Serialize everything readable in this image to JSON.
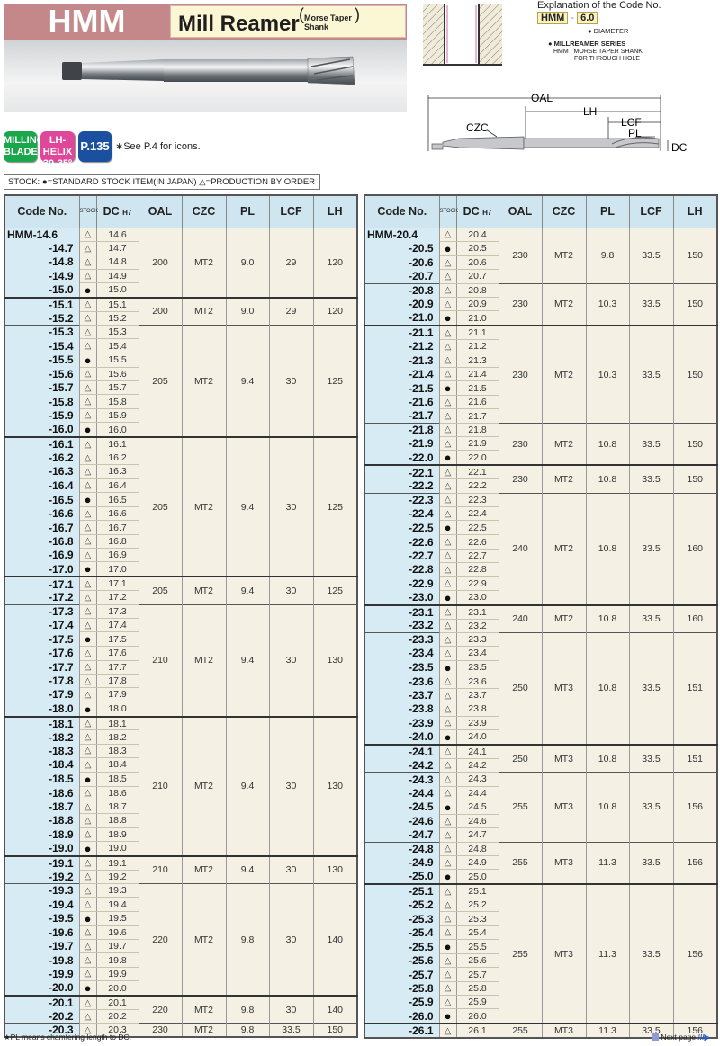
{
  "header": {
    "series_code": "HMM",
    "title": "Mill Reamer",
    "subtitle_line1": "Morse Taper",
    "subtitle_line2": "Shank"
  },
  "icons": [
    {
      "line1": "MILLING",
      "line2": "BLADE",
      "color": "#1aa64a"
    },
    {
      "line1": "LH-HELIX",
      "line2": "30-35º",
      "color": "#e0479a"
    },
    {
      "line1": "P.135",
      "line2": "",
      "color": "#1b4fa0"
    }
  ],
  "icons_note": "∗See P.4 for icons.",
  "stock_legend": "STOCK: ●=STANDARD STOCK ITEM(IN JAPAN)  △=PRODUCTION BY ORDER",
  "code_explanation": {
    "title": "Explanation of the Code No.",
    "series": "HMM",
    "sep": "-",
    "diameter": "6.0",
    "diameter_label": "DIAMETER",
    "series_label": "MILLREAMER SERIES",
    "series_desc1": "HMM : MORSE TAPER SHANK",
    "series_desc2": "FOR THROUGH HOLE"
  },
  "diagram": {
    "oal": "OAL",
    "lh": "LH",
    "lcf": "LCF",
    "pl": "PL",
    "czc": "CZC",
    "dc": "DC"
  },
  "table_headers": {
    "code": "Code No.",
    "stock": "STOCK",
    "dc": "DC",
    "dc_tol": "H7",
    "oal": "OAL",
    "czc": "CZC",
    "pl": "PL",
    "lcf": "LCF",
    "lh": "LH"
  },
  "tables": [
    [
      {
        "oal": "200",
        "czc": "MT2",
        "pl": "9.0",
        "lcf": "29",
        "lh": "120",
        "rows": [
          [
            "HMM-14.6",
            "△",
            "14.6"
          ],
          [
            "-14.7",
            "△",
            "14.7"
          ],
          [
            "-14.8",
            "△",
            "14.8"
          ],
          [
            "-14.9",
            "△",
            "14.9"
          ],
          [
            "-15.0",
            "●",
            "15.0"
          ]
        ]
      },
      {
        "oal": "200",
        "czc": "MT2",
        "pl": "9.0",
        "lcf": "29",
        "lh": "120",
        "rows": [
          [
            "-15.1",
            "△",
            "15.1"
          ],
          [
            "-15.2",
            "△",
            "15.2"
          ]
        ]
      },
      {
        "oal": "205",
        "czc": "MT2",
        "pl": "9.4",
        "lcf": "30",
        "lh": "125",
        "rows": [
          [
            "-15.3",
            "△",
            "15.3"
          ],
          [
            "-15.4",
            "△",
            "15.4"
          ],
          [
            "-15.5",
            "●",
            "15.5"
          ],
          [
            "-15.6",
            "△",
            "15.6"
          ],
          [
            "-15.7",
            "△",
            "15.7"
          ],
          [
            "-15.8",
            "△",
            "15.8"
          ],
          [
            "-15.9",
            "△",
            "15.9"
          ],
          [
            "-16.0",
            "●",
            "16.0"
          ]
        ]
      },
      {
        "oal": "205",
        "czc": "MT2",
        "pl": "9.4",
        "lcf": "30",
        "lh": "125",
        "rows": [
          [
            "-16.1",
            "△",
            "16.1"
          ],
          [
            "-16.2",
            "△",
            "16.2"
          ],
          [
            "-16.3",
            "△",
            "16.3"
          ],
          [
            "-16.4",
            "△",
            "16.4"
          ],
          [
            "-16.5",
            "●",
            "16.5"
          ],
          [
            "-16.6",
            "△",
            "16.6"
          ],
          [
            "-16.7",
            "△",
            "16.7"
          ],
          [
            "-16.8",
            "△",
            "16.8"
          ],
          [
            "-16.9",
            "△",
            "16.9"
          ],
          [
            "-17.0",
            "●",
            "17.0"
          ]
        ]
      },
      {
        "oal": "205",
        "czc": "MT2",
        "pl": "9.4",
        "lcf": "30",
        "lh": "125",
        "rows": [
          [
            "-17.1",
            "△",
            "17.1"
          ],
          [
            "-17.2",
            "△",
            "17.2"
          ]
        ]
      },
      {
        "oal": "210",
        "czc": "MT2",
        "pl": "9.4",
        "lcf": "30",
        "lh": "130",
        "rows": [
          [
            "-17.3",
            "△",
            "17.3"
          ],
          [
            "-17.4",
            "△",
            "17.4"
          ],
          [
            "-17.5",
            "●",
            "17.5"
          ],
          [
            "-17.6",
            "△",
            "17.6"
          ],
          [
            "-17.7",
            "△",
            "17.7"
          ],
          [
            "-17.8",
            "△",
            "17.8"
          ],
          [
            "-17.9",
            "△",
            "17.9"
          ],
          [
            "-18.0",
            "●",
            "18.0"
          ]
        ]
      },
      {
        "oal": "210",
        "czc": "MT2",
        "pl": "9.4",
        "lcf": "30",
        "lh": "130",
        "rows": [
          [
            "-18.1",
            "△",
            "18.1"
          ],
          [
            "-18.2",
            "△",
            "18.2"
          ],
          [
            "-18.3",
            "△",
            "18.3"
          ],
          [
            "-18.4",
            "△",
            "18.4"
          ],
          [
            "-18.5",
            "●",
            "18.5"
          ],
          [
            "-18.6",
            "△",
            "18.6"
          ],
          [
            "-18.7",
            "△",
            "18.7"
          ],
          [
            "-18.8",
            "△",
            "18.8"
          ],
          [
            "-18.9",
            "△",
            "18.9"
          ],
          [
            "-19.0",
            "●",
            "19.0"
          ]
        ]
      },
      {
        "oal": "210",
        "czc": "MT2",
        "pl": "9.4",
        "lcf": "30",
        "lh": "130",
        "rows": [
          [
            "-19.1",
            "△",
            "19.1"
          ],
          [
            "-19.2",
            "△",
            "19.2"
          ]
        ]
      },
      {
        "oal": "220",
        "czc": "MT2",
        "pl": "9.8",
        "lcf": "30",
        "lh": "140",
        "rows": [
          [
            "-19.3",
            "△",
            "19.3"
          ],
          [
            "-19.4",
            "△",
            "19.4"
          ],
          [
            "-19.5",
            "●",
            "19.5"
          ],
          [
            "-19.6",
            "△",
            "19.6"
          ],
          [
            "-19.7",
            "△",
            "19.7"
          ],
          [
            "-19.8",
            "△",
            "19.8"
          ],
          [
            "-19.9",
            "△",
            "19.9"
          ],
          [
            "-20.0",
            "●",
            "20.0"
          ]
        ]
      },
      {
        "oal": "220",
        "czc": "MT2",
        "pl": "9.8",
        "lcf": "30",
        "lh": "140",
        "rows": [
          [
            "-20.1",
            "△",
            "20.1"
          ],
          [
            "-20.2",
            "△",
            "20.2"
          ]
        ]
      },
      {
        "oal": "230",
        "czc": "MT2",
        "pl": "9.8",
        "lcf": "33.5",
        "lh": "150",
        "rows": [
          [
            "-20.3",
            "△",
            "20.3"
          ]
        ]
      }
    ],
    [
      {
        "oal": "230",
        "czc": "MT2",
        "pl": "9.8",
        "lcf": "33.5",
        "lh": "150",
        "rows": [
          [
            "HMM-20.4",
            "△",
            "20.4"
          ],
          [
            "-20.5",
            "●",
            "20.5"
          ],
          [
            "-20.6",
            "△",
            "20.6"
          ],
          [
            "-20.7",
            "△",
            "20.7"
          ]
        ]
      },
      {
        "oal": "230",
        "czc": "MT2",
        "pl": "10.3",
        "lcf": "33.5",
        "lh": "150",
        "rows": [
          [
            "-20.8",
            "△",
            "20.8"
          ],
          [
            "-20.9",
            "△",
            "20.9"
          ],
          [
            "-21.0",
            "●",
            "21.0"
          ]
        ]
      },
      {
        "oal": "230",
        "czc": "MT2",
        "pl": "10.3",
        "lcf": "33.5",
        "lh": "150",
        "rows": [
          [
            "-21.1",
            "△",
            "21.1"
          ],
          [
            "-21.2",
            "△",
            "21.2"
          ],
          [
            "-21.3",
            "△",
            "21.3"
          ],
          [
            "-21.4",
            "△",
            "21.4"
          ],
          [
            "-21.5",
            "●",
            "21.5"
          ],
          [
            "-21.6",
            "△",
            "21.6"
          ],
          [
            "-21.7",
            "△",
            "21.7"
          ]
        ]
      },
      {
        "oal": "230",
        "czc": "MT2",
        "pl": "10.8",
        "lcf": "33.5",
        "lh": "150",
        "rows": [
          [
            "-21.8",
            "△",
            "21.8"
          ],
          [
            "-21.9",
            "△",
            "21.9"
          ],
          [
            "-22.0",
            "●",
            "22.0"
          ]
        ]
      },
      {
        "oal": "230",
        "czc": "MT2",
        "pl": "10.8",
        "lcf": "33.5",
        "lh": "150",
        "rows": [
          [
            "-22.1",
            "△",
            "22.1"
          ],
          [
            "-22.2",
            "△",
            "22.2"
          ]
        ]
      },
      {
        "oal": "240",
        "czc": "MT2",
        "pl": "10.8",
        "lcf": "33.5",
        "lh": "160",
        "rows": [
          [
            "-22.3",
            "△",
            "22.3"
          ],
          [
            "-22.4",
            "△",
            "22.4"
          ],
          [
            "-22.5",
            "●",
            "22.5"
          ],
          [
            "-22.6",
            "△",
            "22.6"
          ],
          [
            "-22.7",
            "△",
            "22.7"
          ],
          [
            "-22.8",
            "△",
            "22.8"
          ],
          [
            "-22.9",
            "△",
            "22.9"
          ],
          [
            "-23.0",
            "●",
            "23.0"
          ]
        ]
      },
      {
        "oal": "240",
        "czc": "MT2",
        "pl": "10.8",
        "lcf": "33.5",
        "lh": "160",
        "rows": [
          [
            "-23.1",
            "△",
            "23.1"
          ],
          [
            "-23.2",
            "△",
            "23.2"
          ]
        ]
      },
      {
        "oal": "250",
        "czc": "MT3",
        "pl": "10.8",
        "lcf": "33.5",
        "lh": "151",
        "rows": [
          [
            "-23.3",
            "△",
            "23.3"
          ],
          [
            "-23.4",
            "△",
            "23.4"
          ],
          [
            "-23.5",
            "●",
            "23.5"
          ],
          [
            "-23.6",
            "△",
            "23.6"
          ],
          [
            "-23.7",
            "△",
            "23.7"
          ],
          [
            "-23.8",
            "△",
            "23.8"
          ],
          [
            "-23.9",
            "△",
            "23.9"
          ],
          [
            "-24.0",
            "●",
            "24.0"
          ]
        ]
      },
      {
        "oal": "250",
        "czc": "MT3",
        "pl": "10.8",
        "lcf": "33.5",
        "lh": "151",
        "rows": [
          [
            "-24.1",
            "△",
            "24.1"
          ],
          [
            "-24.2",
            "△",
            "24.2"
          ]
        ]
      },
      {
        "oal": "255",
        "czc": "MT3",
        "pl": "10.8",
        "lcf": "33.5",
        "lh": "156",
        "rows": [
          [
            "-24.3",
            "△",
            "24.3"
          ],
          [
            "-24.4",
            "△",
            "24.4"
          ],
          [
            "-24.5",
            "●",
            "24.5"
          ],
          [
            "-24.6",
            "△",
            "24.6"
          ],
          [
            "-24.7",
            "△",
            "24.7"
          ]
        ]
      },
      {
        "oal": "255",
        "czc": "MT3",
        "pl": "11.3",
        "lcf": "33.5",
        "lh": "156",
        "rows": [
          [
            "-24.8",
            "△",
            "24.8"
          ],
          [
            "-24.9",
            "△",
            "24.9"
          ],
          [
            "-25.0",
            "●",
            "25.0"
          ]
        ]
      },
      {
        "oal": "255",
        "czc": "MT3",
        "pl": "11.3",
        "lcf": "33.5",
        "lh": "156",
        "rows": [
          [
            "-25.1",
            "△",
            "25.1"
          ],
          [
            "-25.2",
            "△",
            "25.2"
          ],
          [
            "-25.3",
            "△",
            "25.3"
          ],
          [
            "-25.4",
            "△",
            "25.4"
          ],
          [
            "-25.5",
            "●",
            "25.5"
          ],
          [
            "-25.6",
            "△",
            "25.6"
          ],
          [
            "-25.7",
            "△",
            "25.7"
          ],
          [
            "-25.8",
            "△",
            "25.8"
          ],
          [
            "-25.9",
            "△",
            "25.9"
          ],
          [
            "-26.0",
            "●",
            "26.0"
          ]
        ]
      },
      {
        "oal": "255",
        "czc": "MT3",
        "pl": "11.3",
        "lcf": "33.5",
        "lh": "156",
        "rows": [
          [
            "-26.1",
            "△",
            "26.1"
          ]
        ]
      }
    ]
  ],
  "footnote": "★PL means chamfering length to  DC.",
  "next_page": "Next page"
}
